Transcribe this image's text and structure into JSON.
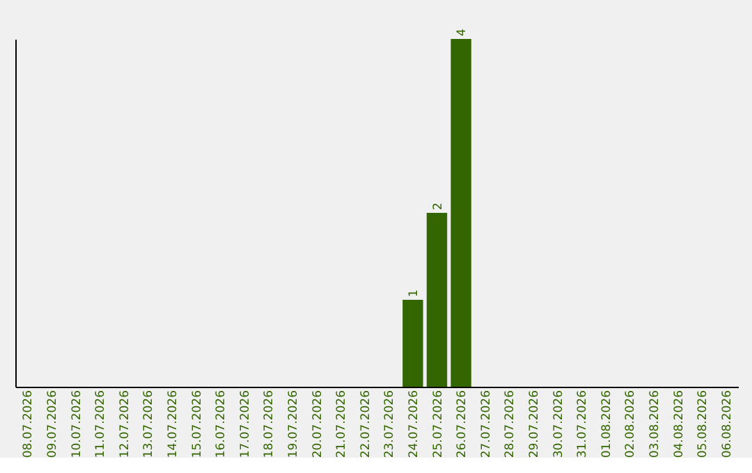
{
  "chart_data": {
    "type": "bar",
    "categories": [
      "08.07.2026",
      "09.07.2026",
      "10.07.2026",
      "11.07.2026",
      "12.07.2026",
      "13.07.2026",
      "14.07.2026",
      "15.07.2026",
      "16.07.2026",
      "17.07.2026",
      "18.07.2026",
      "19.07.2026",
      "20.07.2026",
      "21.07.2026",
      "22.07.2026",
      "23.07.2026",
      "24.07.2026",
      "25.07.2026",
      "26.07.2026",
      "27.07.2026",
      "28.07.2026",
      "29.07.2026",
      "30.07.2026",
      "31.07.2026",
      "01.08.2026",
      "02.08.2026",
      "03.08.2026",
      "04.08.2026",
      "05.08.2026",
      "06.08.2026"
    ],
    "values": [
      null,
      null,
      null,
      null,
      null,
      null,
      null,
      null,
      null,
      null,
      null,
      null,
      null,
      null,
      null,
      null,
      1,
      2,
      4,
      null,
      null,
      null,
      null,
      null,
      null,
      null,
      null,
      null,
      null,
      null
    ],
    "data_labels": true,
    "color": "#336600",
    "grid": false
  }
}
